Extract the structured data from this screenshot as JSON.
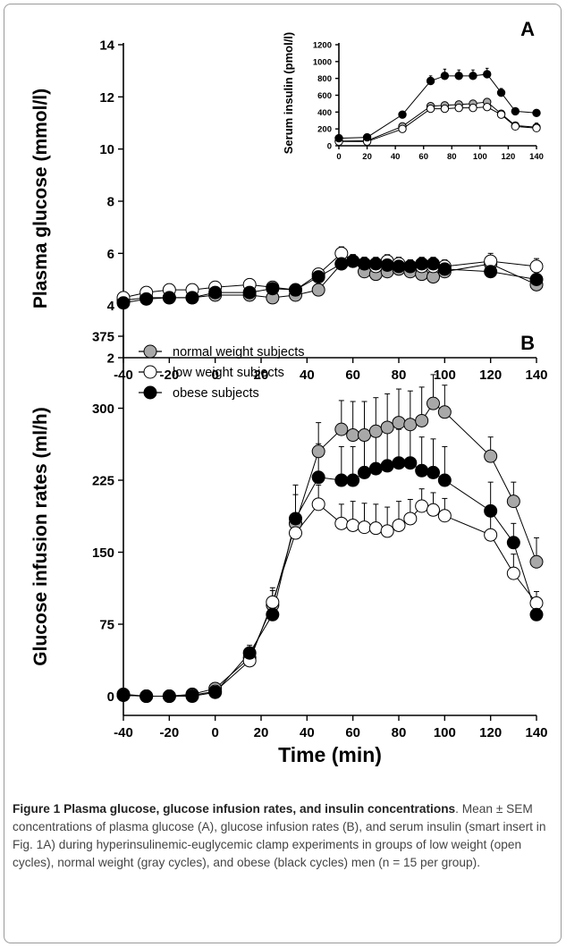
{
  "caption": {
    "label": "Figure 1",
    "title": "Plasma glucose, glucose infusion rates, and insulin concentrations",
    "body": ". Mean ± SEM concentrations of plasma glucose (A), glucose infusion rates (B), and serum insulin (smart insert in Fig. 1A) during hyperinsulinemic-euglycemic clamp experiments in groups of low weight (open cycles), normal weight (gray cycles), and obese (black cycles) men (n = 15 per group)."
  },
  "colors": {
    "normal": "#a8a8a8",
    "low": "#ffffff",
    "obese": "#000000"
  },
  "chart_data": [
    {
      "panel": "A",
      "type": "line",
      "ylabel": "Plasma glucose (mmol/l)",
      "xlabel": "",
      "ylim": [
        2,
        14
      ],
      "xlim": [
        -40,
        140
      ],
      "yticks": [
        2,
        4,
        6,
        8,
        10,
        12,
        14
      ],
      "xticks": [
        -40,
        -20,
        0,
        20,
        40,
        60,
        80,
        100,
        120,
        140
      ],
      "x": [
        -40,
        -30,
        -20,
        -10,
        0,
        15,
        25,
        35,
        45,
        55,
        60,
        65,
        70,
        75,
        80,
        85,
        90,
        95,
        100,
        120,
        140
      ],
      "series": [
        {
          "group": "normal",
          "values": [
            4.2,
            4.3,
            4.3,
            4.3,
            4.4,
            4.4,
            4.3,
            4.4,
            4.6,
            5.6,
            5.7,
            5.3,
            5.2,
            5.3,
            5.4,
            5.3,
            5.2,
            5.1,
            5.3,
            5.6,
            4.8
          ],
          "err": [
            0.15,
            0.15,
            0.15,
            0.15,
            0.15,
            0.15,
            0.15,
            0.15,
            0.2,
            0.25,
            0.25,
            0.25,
            0.25,
            0.25,
            0.25,
            0.25,
            0.25,
            0.25,
            0.25,
            0.3,
            0.4
          ]
        },
        {
          "group": "low",
          "values": [
            4.3,
            4.5,
            4.6,
            4.6,
            4.7,
            4.8,
            4.7,
            4.6,
            5.2,
            6.0,
            5.7,
            5.6,
            5.5,
            5.7,
            5.6,
            5.5,
            5.5,
            5.5,
            5.5,
            5.7,
            5.5
          ],
          "err": [
            0.15,
            0.15,
            0.15,
            0.15,
            0.15,
            0.15,
            0.15,
            0.15,
            0.2,
            0.25,
            0.25,
            0.25,
            0.25,
            0.25,
            0.25,
            0.25,
            0.25,
            0.25,
            0.25,
            0.3,
            0.3
          ]
        },
        {
          "group": "obese",
          "values": [
            4.1,
            4.25,
            4.3,
            4.3,
            4.5,
            4.5,
            4.65,
            4.6,
            5.1,
            5.6,
            5.7,
            5.6,
            5.6,
            5.55,
            5.5,
            5.5,
            5.6,
            5.6,
            5.4,
            5.3,
            5.0
          ],
          "err": [
            0.15,
            0.15,
            0.15,
            0.15,
            0.15,
            0.15,
            0.15,
            0.15,
            0.2,
            0.25,
            0.25,
            0.25,
            0.25,
            0.25,
            0.25,
            0.25,
            0.25,
            0.25,
            0.25,
            0.3,
            0.3
          ]
        }
      ]
    },
    {
      "panel": "A-inset",
      "type": "line",
      "ylabel": "Serum insulin (pmol/l)",
      "xlabel": "",
      "ylim": [
        0,
        1200
      ],
      "xlim": [
        0,
        140
      ],
      "yticks": [
        0,
        200,
        400,
        600,
        800,
        1000,
        1200
      ],
      "xticks": [
        0,
        20,
        40,
        60,
        80,
        100,
        120,
        140
      ],
      "x": [
        0,
        20,
        45,
        65,
        75,
        85,
        95,
        105,
        115,
        125,
        140
      ],
      "series": [
        {
          "group": "normal",
          "values": [
            55,
            60,
            230,
            470,
            480,
            490,
            500,
            520,
            380,
            240,
            220
          ],
          "err": [
            15,
            15,
            30,
            40,
            40,
            40,
            40,
            40,
            30,
            30,
            50
          ]
        },
        {
          "group": "low",
          "values": [
            50,
            50,
            200,
            440,
            440,
            450,
            450,
            460,
            370,
            230,
            210
          ],
          "err": [
            15,
            15,
            30,
            50,
            50,
            50,
            50,
            50,
            30,
            30,
            50
          ]
        },
        {
          "group": "obese",
          "values": [
            90,
            100,
            370,
            770,
            830,
            830,
            830,
            850,
            630,
            410,
            390
          ],
          "err": [
            15,
            15,
            30,
            60,
            80,
            70,
            70,
            70,
            50,
            30,
            30
          ]
        }
      ]
    },
    {
      "panel": "B",
      "type": "line",
      "ylabel": "Glucose infusion rates (ml/h)",
      "xlabel": "Time (min)",
      "ylim": [
        -20,
        375
      ],
      "xlim": [
        -40,
        140
      ],
      "yticks": [
        0,
        75,
        150,
        225,
        300,
        375
      ],
      "xticks": [
        -40,
        -20,
        0,
        20,
        40,
        60,
        80,
        100,
        120,
        140
      ],
      "x": [
        -40,
        -30,
        -20,
        -10,
        0,
        15,
        25,
        35,
        45,
        55,
        60,
        65,
        70,
        75,
        80,
        85,
        90,
        95,
        100,
        120,
        130,
        140
      ],
      "series": [
        {
          "group": "normal",
          "label": "normal weight subjects",
          "values": [
            2,
            0,
            0,
            2,
            8,
            40,
            95,
            180,
            255,
            278,
            272,
            272,
            276,
            280,
            285,
            283,
            287,
            305,
            296,
            250,
            203,
            140
          ],
          "err": [
            4,
            4,
            4,
            4,
            6,
            8,
            15,
            30,
            30,
            30,
            35,
            35,
            35,
            35,
            35,
            35,
            35,
            30,
            28,
            20,
            20,
            25
          ]
        },
        {
          "group": "low",
          "label": "low weight subjects",
          "values": [
            1,
            0,
            0,
            1,
            5,
            37,
            98,
            170,
            200,
            180,
            178,
            176,
            175,
            172,
            178,
            185,
            198,
            194,
            188,
            168,
            128,
            97
          ],
          "err": [
            4,
            4,
            4,
            4,
            6,
            8,
            15,
            20,
            20,
            20,
            25,
            25,
            25,
            25,
            25,
            20,
            18,
            18,
            18,
            25,
            20,
            12
          ]
        },
        {
          "group": "obese",
          "label": "obese subjects",
          "values": [
            1,
            0,
            0,
            0,
            4,
            45,
            85,
            185,
            228,
            225,
            225,
            233,
            237,
            240,
            243,
            243,
            235,
            233,
            225,
            193,
            160,
            85
          ],
          "err": [
            4,
            4,
            4,
            4,
            6,
            8,
            12,
            35,
            35,
            35,
            35,
            35,
            35,
            35,
            35,
            35,
            35,
            35,
            35,
            30,
            20,
            10
          ]
        }
      ]
    }
  ]
}
